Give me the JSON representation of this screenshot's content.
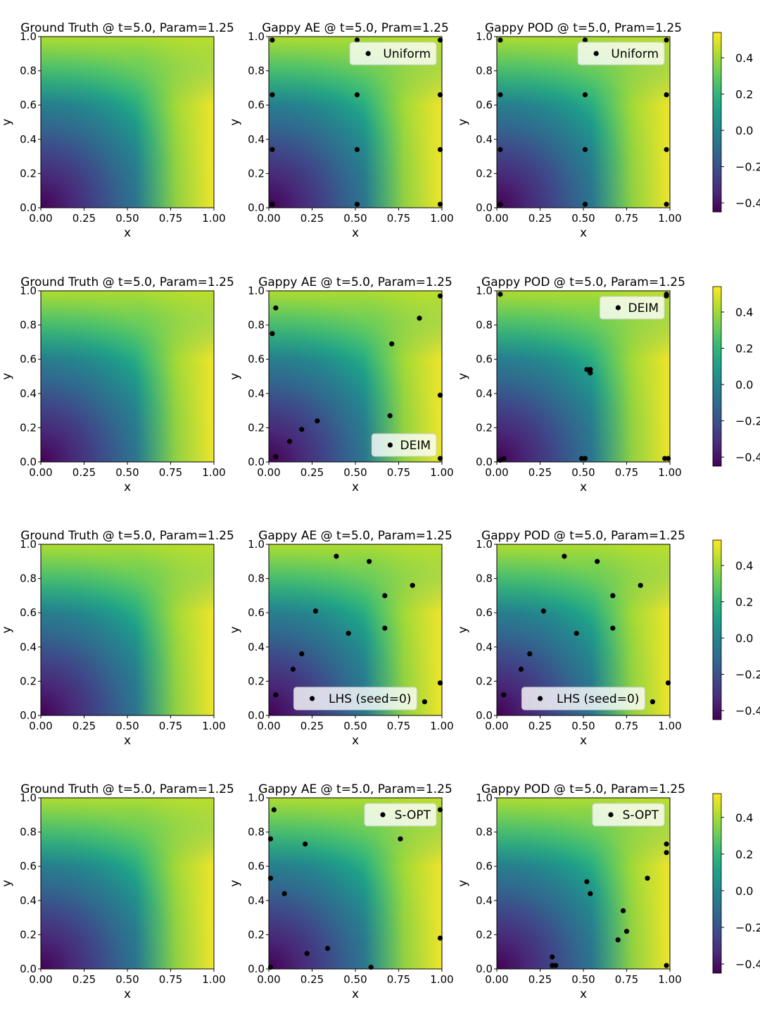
{
  "colors": {
    "viridis": [
      "#440154",
      "#482878",
      "#3e4989",
      "#31688e",
      "#26828e",
      "#1f9e89",
      "#35b779",
      "#6ece58",
      "#b5de2b",
      "#fde725"
    ],
    "points": "#000000",
    "legend_bg": "#ffffff"
  },
  "chart_data": [
    {
      "row": 1,
      "panels": [
        {
          "type": "heatmap",
          "title": "Ground Truth @ t=5.0, Param=1.25",
          "xlabel": "x",
          "ylabel": "y",
          "xlim": [
            0,
            1
          ],
          "ylim": [
            0,
            1
          ],
          "xticks": [
            "0.00",
            "0.25",
            "0.50",
            "0.75",
            "1.00"
          ],
          "yticks": [
            "0.0",
            "0.2",
            "0.4",
            "0.6",
            "0.8",
            "1.0"
          ]
        },
        {
          "type": "heatmap",
          "title": "Gappy AE @ t=5.0, Pram=1.25",
          "xlabel": "x",
          "ylabel": "y",
          "xlim": [
            0,
            1
          ],
          "ylim": [
            0,
            1
          ],
          "xticks": [
            "0.00",
            "0.25",
            "0.50",
            "0.75",
            "1.00"
          ],
          "yticks": [
            "0.0",
            "0.2",
            "0.4",
            "0.6",
            "0.8",
            "1.0"
          ],
          "legend": "Uniform",
          "legend_loc": "upper right",
          "points": [
            [
              0.02,
              0.98
            ],
            [
              0.51,
              0.98
            ],
            [
              0.99,
              0.98
            ],
            [
              0.02,
              0.66
            ],
            [
              0.51,
              0.66
            ],
            [
              0.99,
              0.66
            ],
            [
              0.02,
              0.34
            ],
            [
              0.51,
              0.34
            ],
            [
              0.99,
              0.34
            ],
            [
              0.02,
              0.02
            ],
            [
              0.51,
              0.02
            ],
            [
              0.99,
              0.02
            ]
          ]
        },
        {
          "type": "heatmap",
          "title": "Gappy POD @ t=5.0, Pram=1.25",
          "xlabel": "x",
          "ylabel": "y",
          "xlim": [
            0,
            1
          ],
          "ylim": [
            0,
            1
          ],
          "xticks": [
            "0.00",
            "0.25",
            "0.50",
            "0.75",
            "1.00"
          ],
          "yticks": [
            "0.0",
            "0.2",
            "0.4",
            "0.6",
            "0.8",
            "1.0"
          ],
          "legend": "Uniform",
          "legend_loc": "upper right",
          "points": [
            [
              0.02,
              0.98
            ],
            [
              0.51,
              0.98
            ],
            [
              0.98,
              0.98
            ],
            [
              0.02,
              0.66
            ],
            [
              0.51,
              0.66
            ],
            [
              0.98,
              0.66
            ],
            [
              0.02,
              0.34
            ],
            [
              0.51,
              0.34
            ],
            [
              0.98,
              0.34
            ],
            [
              0.02,
              0.02
            ],
            [
              0.51,
              0.02
            ],
            [
              0.98,
              0.02
            ]
          ]
        }
      ],
      "colorbar": {
        "range": [
          -0.45,
          0.54
        ],
        "ticks": [
          -0.4,
          -0.2,
          0.0,
          0.2,
          0.4
        ],
        "tick_labels": [
          "−0.4",
          "−0.2",
          "0.0",
          "0.2",
          "0.4"
        ]
      }
    },
    {
      "row": 2,
      "panels": [
        {
          "type": "heatmap",
          "title": "Ground Truth @ t=5.0, Param=1.25",
          "xlabel": "x",
          "ylabel": "y",
          "xlim": [
            0,
            1
          ],
          "ylim": [
            0,
            1
          ],
          "xticks": [
            "0.00",
            "0.25",
            "0.50",
            "0.75",
            "1.00"
          ],
          "yticks": [
            "0.0",
            "0.2",
            "0.4",
            "0.6",
            "0.8",
            "1.0"
          ]
        },
        {
          "type": "heatmap",
          "title": "Gappy AE @ t=5.0, Param=1.25",
          "xlabel": "x",
          "ylabel": "y",
          "xlim": [
            0,
            1
          ],
          "ylim": [
            0,
            1
          ],
          "xticks": [
            "0.00",
            "0.25",
            "0.50",
            "0.75",
            "1.00"
          ],
          "yticks": [
            "0.0",
            "0.2",
            "0.4",
            "0.6",
            "0.8",
            "1.0"
          ],
          "legend": "DEIM",
          "legend_loc": "lower right",
          "points": [
            [
              0.04,
              0.9
            ],
            [
              0.02,
              0.75
            ],
            [
              0.99,
              0.97
            ],
            [
              0.87,
              0.84
            ],
            [
              0.71,
              0.69
            ],
            [
              0.99,
              0.39
            ],
            [
              0.7,
              0.27
            ],
            [
              0.28,
              0.24
            ],
            [
              0.19,
              0.19
            ],
            [
              0.12,
              0.12
            ],
            [
              0.04,
              0.03
            ],
            [
              0.99,
              0.02
            ]
          ]
        },
        {
          "type": "heatmap",
          "title": "Gappy POD @ t=5.0, Param=1.25",
          "xlabel": "x",
          "ylabel": "y",
          "xlim": [
            0,
            1
          ],
          "ylim": [
            0,
            1
          ],
          "xticks": [
            "0.00",
            "0.25",
            "0.50",
            "0.75",
            "1.00"
          ],
          "yticks": [
            "0.0",
            "0.2",
            "0.4",
            "0.6",
            "0.8",
            "1.0"
          ],
          "legend": "DEIM",
          "legend_loc": "upper right",
          "points": [
            [
              0.02,
              0.98
            ],
            [
              0.98,
              0.98
            ],
            [
              0.98,
              0.97
            ],
            [
              0.52,
              0.54
            ],
            [
              0.54,
              0.54
            ],
            [
              0.54,
              0.52
            ],
            [
              0.02,
              0.01
            ],
            [
              0.04,
              0.02
            ],
            [
              0.49,
              0.02
            ],
            [
              0.51,
              0.02
            ],
            [
              0.97,
              0.02
            ],
            [
              0.99,
              0.02
            ]
          ]
        }
      ],
      "colorbar": {
        "range": [
          -0.45,
          0.54
        ],
        "ticks": [
          -0.4,
          -0.2,
          0.0,
          0.2,
          0.4
        ],
        "tick_labels": [
          "−0.4",
          "−0.2",
          "0.0",
          "0.2",
          "0.4"
        ]
      }
    },
    {
      "row": 3,
      "panels": [
        {
          "type": "heatmap",
          "title": "Ground Truth @ t=5.0, Param=1.25",
          "xlabel": "x",
          "ylabel": "y",
          "xlim": [
            0,
            1
          ],
          "ylim": [
            0,
            1
          ],
          "xticks": [
            "0.00",
            "0.25",
            "0.50",
            "0.75",
            "1.00"
          ],
          "yticks": [
            "0.0",
            "0.2",
            "0.4",
            "0.6",
            "0.8",
            "1.0"
          ]
        },
        {
          "type": "heatmap",
          "title": "Gappy AE @ t=5.0, Param=1.25",
          "xlabel": "x",
          "ylabel": "y",
          "xlim": [
            0,
            1
          ],
          "ylim": [
            0,
            1
          ],
          "xticks": [
            "0.00",
            "0.25",
            "0.50",
            "0.75",
            "1.00"
          ],
          "yticks": [
            "0.0",
            "0.2",
            "0.4",
            "0.6",
            "0.8",
            "1.0"
          ],
          "legend": "LHS (seed=0)",
          "legend_loc": "lower center",
          "points": [
            [
              0.39,
              0.93
            ],
            [
              0.58,
              0.9
            ],
            [
              0.83,
              0.76
            ],
            [
              0.67,
              0.7
            ],
            [
              0.27,
              0.61
            ],
            [
              0.67,
              0.51
            ],
            [
              0.46,
              0.48
            ],
            [
              0.19,
              0.36
            ],
            [
              0.14,
              0.27
            ],
            [
              0.99,
              0.19
            ],
            [
              0.04,
              0.12
            ],
            [
              0.9,
              0.08
            ]
          ]
        },
        {
          "type": "heatmap",
          "title": "Gappy POD @ t=5.0, Param=1.25",
          "xlabel": "x",
          "ylabel": "y",
          "xlim": [
            0,
            1
          ],
          "ylim": [
            0,
            1
          ],
          "xticks": [
            "0.00",
            "0.25",
            "0.50",
            "0.75",
            "1.00"
          ],
          "yticks": [
            "0.0",
            "0.2",
            "0.4",
            "0.6",
            "0.8",
            "1.0"
          ],
          "legend": "LHS (seed=0)",
          "legend_loc": "lower center",
          "points": [
            [
              0.39,
              0.93
            ],
            [
              0.58,
              0.9
            ],
            [
              0.83,
              0.76
            ],
            [
              0.67,
              0.7
            ],
            [
              0.27,
              0.61
            ],
            [
              0.67,
              0.51
            ],
            [
              0.46,
              0.48
            ],
            [
              0.19,
              0.36
            ],
            [
              0.14,
              0.27
            ],
            [
              0.99,
              0.19
            ],
            [
              0.04,
              0.12
            ],
            [
              0.9,
              0.08
            ]
          ]
        }
      ],
      "colorbar": {
        "range": [
          -0.45,
          0.54
        ],
        "ticks": [
          -0.4,
          -0.2,
          0.0,
          0.2,
          0.4
        ],
        "tick_labels": [
          "−0.4",
          "−0.2",
          "0.0",
          "0.2",
          "0.4"
        ]
      }
    },
    {
      "row": 4,
      "panels": [
        {
          "type": "heatmap",
          "title": "Ground Truth @ t=5.0, Param=1.25",
          "xlabel": "x",
          "ylabel": "y",
          "xlim": [
            0,
            1
          ],
          "ylim": [
            0,
            1
          ],
          "xticks": [
            "0.00",
            "0.25",
            "0.50",
            "0.75",
            "1.00"
          ],
          "yticks": [
            "0.0",
            "0.2",
            "0.4",
            "0.6",
            "0.8",
            "1.0"
          ]
        },
        {
          "type": "heatmap",
          "title": "Gappy AE @ t=5.0, Param=1.25",
          "xlabel": "x",
          "ylabel": "y",
          "xlim": [
            0,
            1
          ],
          "ylim": [
            0,
            1
          ],
          "xticks": [
            "0.00",
            "0.25",
            "0.50",
            "0.75",
            "1.00"
          ],
          "yticks": [
            "0.0",
            "0.2",
            "0.4",
            "0.6",
            "0.8",
            "1.0"
          ],
          "legend": "S-OPT",
          "legend_loc": "upper right",
          "points": [
            [
              0.03,
              0.93
            ],
            [
              0.99,
              0.93
            ],
            [
              0.01,
              0.76
            ],
            [
              0.76,
              0.76
            ],
            [
              0.21,
              0.73
            ],
            [
              0.01,
              0.53
            ],
            [
              0.09,
              0.44
            ],
            [
              0.99,
              0.18
            ],
            [
              0.34,
              0.12
            ],
            [
              0.22,
              0.09
            ],
            [
              0.01,
              0.01
            ],
            [
              0.59,
              0.01
            ]
          ]
        },
        {
          "type": "heatmap",
          "title": "Gappy POD @ t=5.0, Param=1.25",
          "xlabel": "x",
          "ylabel": "y",
          "xlim": [
            0,
            1
          ],
          "ylim": [
            0,
            1
          ],
          "xticks": [
            "0.00",
            "0.25",
            "0.50",
            "0.75",
            "1.00"
          ],
          "yticks": [
            "0.0",
            "0.2",
            "0.4",
            "0.6",
            "0.8",
            "1.0"
          ],
          "legend": "S-OPT",
          "legend_loc": "upper right",
          "points": [
            [
              0.98,
              0.73
            ],
            [
              0.98,
              0.68
            ],
            [
              0.87,
              0.53
            ],
            [
              0.52,
              0.51
            ],
            [
              0.54,
              0.44
            ],
            [
              0.73,
              0.34
            ],
            [
              0.75,
              0.22
            ],
            [
              0.7,
              0.17
            ],
            [
              0.32,
              0.07
            ],
            [
              0.32,
              0.02
            ],
            [
              0.34,
              0.02
            ],
            [
              0.98,
              0.02
            ]
          ]
        }
      ],
      "colorbar": {
        "range": [
          -0.45,
          0.53
        ],
        "ticks": [
          -0.4,
          -0.2,
          0.0,
          0.2,
          0.4
        ],
        "tick_labels": [
          "−0.4",
          "−0.2",
          "0.0",
          "0.2",
          "0.4"
        ]
      }
    }
  ]
}
